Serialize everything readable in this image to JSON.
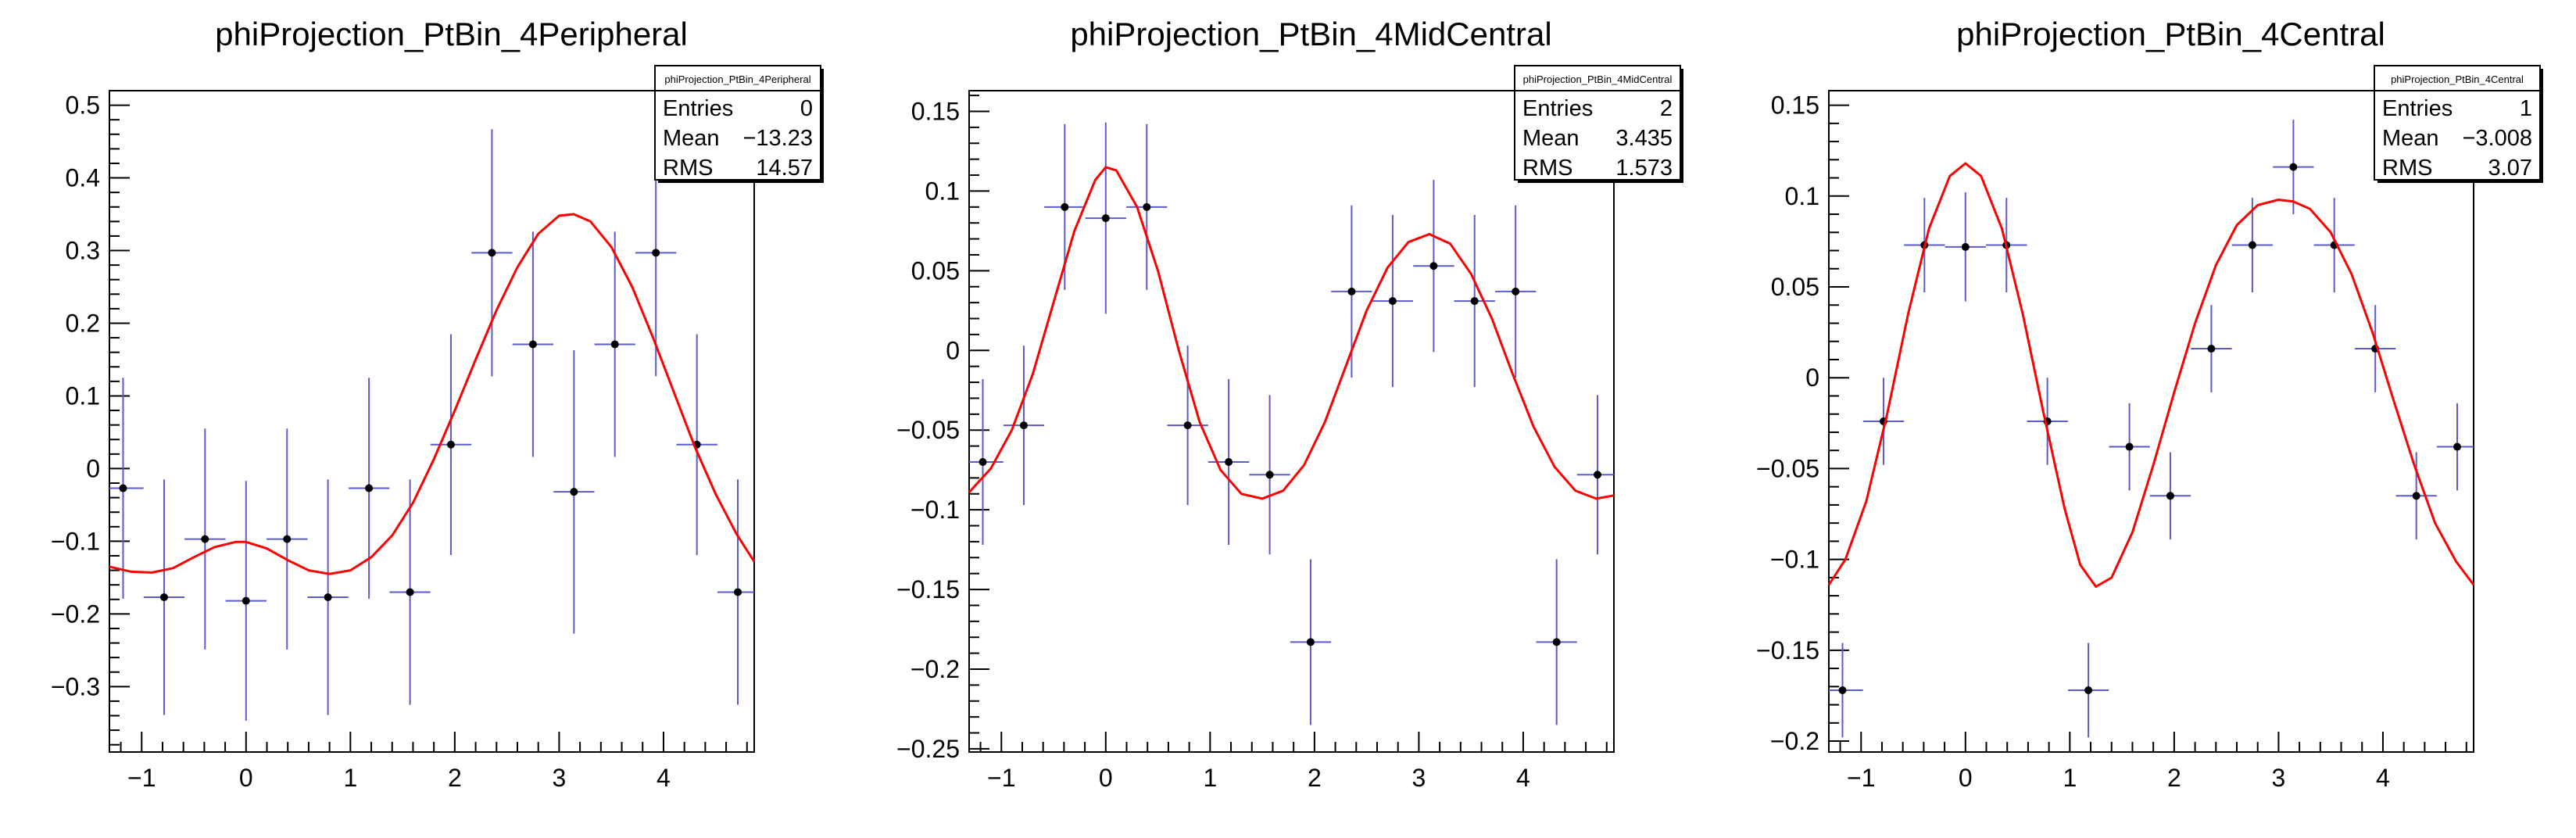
{
  "chart_data": [
    {
      "type": "scatter",
      "title": "phiProjection_PtBin_4Peripheral",
      "stats": {
        "name": "phiProjection_PtBin_4Peripheral",
        "rows": [
          {
            "label": "Entries",
            "value": "0"
          },
          {
            "label": "Mean",
            "value": "−13.23"
          },
          {
            "label": "RMS",
            "value": "14.57"
          }
        ]
      },
      "xlim": [
        -1.309,
        4.869
      ],
      "ylim": [
        -0.39,
        0.52
      ],
      "xticks": [
        -1,
        0,
        1,
        2,
        3,
        4
      ],
      "xtick_labels": [
        "−1",
        "0",
        "1",
        "2",
        "3",
        "4"
      ],
      "yticks": [
        -0.3,
        -0.2,
        -0.1,
        0,
        0.1,
        0.2,
        0.3,
        0.4,
        0.5
      ],
      "ytick_labels": [
        "−0.3",
        "−0.2",
        "−0.1",
        "0",
        "0.1",
        "0.2",
        "0.3",
        "0.4",
        "0.5"
      ],
      "bin_halfwidth": 0.196,
      "points": [
        {
          "x": -1.178,
          "y": -0.027,
          "err": 0.152
        },
        {
          "x": -0.785,
          "y": -0.177,
          "err": 0.162
        },
        {
          "x": -0.393,
          "y": -0.097,
          "err": 0.152
        },
        {
          "x": 0.0,
          "y": -0.182,
          "err": 0.165
        },
        {
          "x": 0.393,
          "y": -0.097,
          "err": 0.152
        },
        {
          "x": 0.785,
          "y": -0.177,
          "err": 0.162
        },
        {
          "x": 1.178,
          "y": -0.027,
          "err": 0.152
        },
        {
          "x": 1.571,
          "y": -0.17,
          "err": 0.155
        },
        {
          "x": 1.963,
          "y": 0.033,
          "err": 0.152
        },
        {
          "x": 2.356,
          "y": 0.297,
          "err": 0.17
        },
        {
          "x": 2.749,
          "y": 0.171,
          "err": 0.155
        },
        {
          "x": 3.142,
          "y": -0.032,
          "err": 0.195
        },
        {
          "x": 3.534,
          "y": 0.171,
          "err": 0.155
        },
        {
          "x": 3.927,
          "y": 0.297,
          "err": 0.17
        },
        {
          "x": 4.32,
          "y": 0.033,
          "err": 0.152
        },
        {
          "x": 4.712,
          "y": -0.17,
          "err": 0.155
        }
      ],
      "fit_curve": [
        [
          -1.309,
          -0.135
        ],
        [
          -1.1,
          -0.142
        ],
        [
          -0.9,
          -0.143
        ],
        [
          -0.7,
          -0.137
        ],
        [
          -0.5,
          -0.122
        ],
        [
          -0.3,
          -0.108
        ],
        [
          -0.1,
          -0.101
        ],
        [
          0.0,
          -0.101
        ],
        [
          0.2,
          -0.11
        ],
        [
          0.4,
          -0.126
        ],
        [
          0.6,
          -0.14
        ],
        [
          0.8,
          -0.145
        ],
        [
          1.0,
          -0.14
        ],
        [
          1.2,
          -0.122
        ],
        [
          1.4,
          -0.092
        ],
        [
          1.6,
          -0.047
        ],
        [
          1.8,
          0.013
        ],
        [
          2.0,
          0.08
        ],
        [
          2.2,
          0.15
        ],
        [
          2.4,
          0.218
        ],
        [
          2.6,
          0.277
        ],
        [
          2.8,
          0.323
        ],
        [
          3.0,
          0.348
        ],
        [
          3.14,
          0.35
        ],
        [
          3.3,
          0.34
        ],
        [
          3.5,
          0.305
        ],
        [
          3.7,
          0.25
        ],
        [
          3.9,
          0.18
        ],
        [
          4.1,
          0.105
        ],
        [
          4.3,
          0.03
        ],
        [
          4.5,
          -0.035
        ],
        [
          4.7,
          -0.09
        ],
        [
          4.869,
          -0.128
        ]
      ]
    },
    {
      "type": "scatter",
      "title": "phiProjection_PtBin_4MidCentral",
      "stats": {
        "name": "phiProjection_PtBin_4MidCentral",
        "rows": [
          {
            "label": "Entries",
            "value": "2"
          },
          {
            "label": "Mean",
            "value": "3.435"
          },
          {
            "label": "RMS",
            "value": "1.573"
          }
        ]
      },
      "xlim": [
        -1.309,
        4.869
      ],
      "ylim": [
        -0.252,
        0.163
      ],
      "xticks": [
        -1,
        0,
        1,
        2,
        3,
        4
      ],
      "xtick_labels": [
        "−1",
        "0",
        "1",
        "2",
        "3",
        "4"
      ],
      "yticks": [
        -0.25,
        -0.2,
        -0.15,
        -0.1,
        -0.05,
        0,
        0.05,
        0.1,
        0.15
      ],
      "ytick_labels": [
        "−0.25",
        "−0.2",
        "−0.15",
        "−0.1",
        "−0.05",
        "0",
        "0.05",
        "0.1",
        "0.15"
      ],
      "bin_halfwidth": 0.196,
      "points": [
        {
          "x": -1.178,
          "y": -0.07,
          "err": 0.052
        },
        {
          "x": -0.785,
          "y": -0.047,
          "err": 0.05
        },
        {
          "x": -0.393,
          "y": 0.09,
          "err": 0.052
        },
        {
          "x": 0.0,
          "y": 0.083,
          "err": 0.06
        },
        {
          "x": 0.393,
          "y": 0.09,
          "err": 0.052
        },
        {
          "x": 0.785,
          "y": -0.047,
          "err": 0.05
        },
        {
          "x": 1.178,
          "y": -0.07,
          "err": 0.052
        },
        {
          "x": 1.571,
          "y": -0.078,
          "err": 0.05
        },
        {
          "x": 1.963,
          "y": -0.183,
          "err": 0.052
        },
        {
          "x": 2.356,
          "y": 0.037,
          "err": 0.054
        },
        {
          "x": 2.749,
          "y": 0.031,
          "err": 0.054
        },
        {
          "x": 3.142,
          "y": 0.053,
          "err": 0.054
        },
        {
          "x": 3.534,
          "y": 0.031,
          "err": 0.054
        },
        {
          "x": 3.927,
          "y": 0.037,
          "err": 0.054
        },
        {
          "x": 4.32,
          "y": -0.183,
          "err": 0.052
        },
        {
          "x": 4.712,
          "y": -0.078,
          "err": 0.05
        }
      ],
      "fit_curve": [
        [
          -1.309,
          -0.089
        ],
        [
          -1.1,
          -0.074
        ],
        [
          -0.9,
          -0.05
        ],
        [
          -0.7,
          -0.015
        ],
        [
          -0.5,
          0.03
        ],
        [
          -0.3,
          0.075
        ],
        [
          -0.1,
          0.107
        ],
        [
          0.0,
          0.115
        ],
        [
          0.1,
          0.113
        ],
        [
          0.3,
          0.09
        ],
        [
          0.5,
          0.05
        ],
        [
          0.7,
          0.0
        ],
        [
          0.9,
          -0.045
        ],
        [
          1.1,
          -0.075
        ],
        [
          1.3,
          -0.09
        ],
        [
          1.5,
          -0.093
        ],
        [
          1.7,
          -0.088
        ],
        [
          1.9,
          -0.072
        ],
        [
          2.1,
          -0.045
        ],
        [
          2.3,
          -0.01
        ],
        [
          2.5,
          0.025
        ],
        [
          2.7,
          0.052
        ],
        [
          2.9,
          0.068
        ],
        [
          3.1,
          0.073
        ],
        [
          3.3,
          0.067
        ],
        [
          3.5,
          0.048
        ],
        [
          3.7,
          0.02
        ],
        [
          3.9,
          -0.015
        ],
        [
          4.1,
          -0.048
        ],
        [
          4.3,
          -0.073
        ],
        [
          4.5,
          -0.088
        ],
        [
          4.7,
          -0.093
        ],
        [
          4.869,
          -0.091
        ]
      ]
    },
    {
      "type": "scatter",
      "title": "phiProjection_PtBin_4Central",
      "stats": {
        "name": "phiProjection_PtBin_4Central",
        "rows": [
          {
            "label": "Entries",
            "value": "1"
          },
          {
            "label": "Mean",
            "value": "−3.008"
          },
          {
            "label": "RMS",
            "value": "3.07"
          }
        ]
      },
      "xlim": [
        -1.309,
        4.869
      ],
      "ylim": [
        -0.206,
        0.158
      ],
      "xticks": [
        -1,
        0,
        1,
        2,
        3,
        4
      ],
      "xtick_labels": [
        "−1",
        "0",
        "1",
        "2",
        "3",
        "4"
      ],
      "yticks": [
        -0.2,
        -0.15,
        -0.1,
        -0.05,
        0,
        0.05,
        0.1,
        0.15
      ],
      "ytick_labels": [
        "−0.2",
        "−0.15",
        "−0.1",
        "−0.05",
        "0",
        "0.05",
        "0.1",
        "0.15"
      ],
      "bin_halfwidth": 0.196,
      "points": [
        {
          "x": -1.178,
          "y": -0.172,
          "err": 0.026
        },
        {
          "x": -0.785,
          "y": -0.024,
          "err": 0.024
        },
        {
          "x": -0.393,
          "y": 0.073,
          "err": 0.026
        },
        {
          "x": 0.0,
          "y": 0.072,
          "err": 0.03
        },
        {
          "x": 0.393,
          "y": 0.073,
          "err": 0.026
        },
        {
          "x": 0.785,
          "y": -0.024,
          "err": 0.024
        },
        {
          "x": 1.178,
          "y": -0.172,
          "err": 0.026
        },
        {
          "x": 1.571,
          "y": -0.038,
          "err": 0.024
        },
        {
          "x": 1.963,
          "y": -0.065,
          "err": 0.024
        },
        {
          "x": 2.356,
          "y": 0.016,
          "err": 0.024
        },
        {
          "x": 2.749,
          "y": 0.073,
          "err": 0.026
        },
        {
          "x": 3.142,
          "y": 0.116,
          "err": 0.026
        },
        {
          "x": 3.534,
          "y": 0.073,
          "err": 0.026
        },
        {
          "x": 3.927,
          "y": 0.016,
          "err": 0.024
        },
        {
          "x": 4.32,
          "y": -0.065,
          "err": 0.024
        },
        {
          "x": 4.712,
          "y": -0.038,
          "err": 0.024
        }
      ],
      "fit_curve": [
        [
          -1.309,
          -0.114
        ],
        [
          -1.15,
          -0.1
        ],
        [
          -0.95,
          -0.068
        ],
        [
          -0.75,
          -0.02
        ],
        [
          -0.55,
          0.035
        ],
        [
          -0.35,
          0.082
        ],
        [
          -0.15,
          0.111
        ],
        [
          0.0,
          0.118
        ],
        [
          0.15,
          0.111
        ],
        [
          0.35,
          0.082
        ],
        [
          0.55,
          0.035
        ],
        [
          0.75,
          -0.02
        ],
        [
          0.95,
          -0.072
        ],
        [
          1.1,
          -0.103
        ],
        [
          1.25,
          -0.115
        ],
        [
          1.4,
          -0.11
        ],
        [
          1.6,
          -0.085
        ],
        [
          1.8,
          -0.048
        ],
        [
          2.0,
          -0.008
        ],
        [
          2.2,
          0.03
        ],
        [
          2.4,
          0.062
        ],
        [
          2.6,
          0.084
        ],
        [
          2.8,
          0.095
        ],
        [
          3.0,
          0.098
        ],
        [
          3.14,
          0.097
        ],
        [
          3.3,
          0.093
        ],
        [
          3.5,
          0.08
        ],
        [
          3.7,
          0.057
        ],
        [
          3.9,
          0.025
        ],
        [
          4.1,
          -0.012
        ],
        [
          4.3,
          -0.048
        ],
        [
          4.5,
          -0.08
        ],
        [
          4.7,
          -0.101
        ],
        [
          4.869,
          -0.114
        ]
      ]
    }
  ],
  "colors": {
    "frame": "#000000",
    "error_bar": "#5b5bc7",
    "marker": "#000000",
    "fit": "#ff0000"
  }
}
